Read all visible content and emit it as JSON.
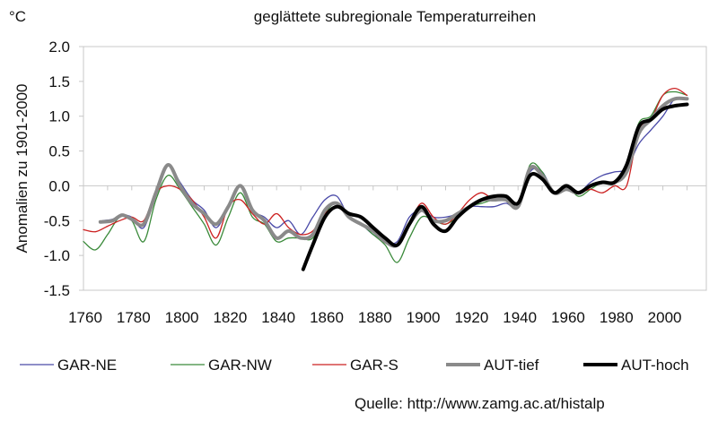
{
  "chart_data": {
    "type": "line",
    "title": "geglättete subregionale Temperaturreihen",
    "unit_label": "°C",
    "ylabel": "Anomalien zu 1901-2000",
    "xlabel": "",
    "ylim": [
      -1.5,
      2.0
    ],
    "xlim": [
      1760,
      2018
    ],
    "yticks": [
      "2.0",
      "1.5",
      "1.0",
      "0.5",
      "0.0",
      "-0.5",
      "-1.0",
      "-1.5"
    ],
    "ytick_values": [
      2.0,
      1.5,
      1.0,
      0.5,
      0.0,
      -0.5,
      -1.0,
      -1.5
    ],
    "xticks": [
      "1760",
      "1780",
      "1800",
      "1820",
      "1840",
      "1860",
      "1880",
      "1900",
      "1920",
      "1940",
      "1960",
      "1980",
      "2000"
    ],
    "xtick_values": [
      1760,
      1780,
      1800,
      1820,
      1840,
      1860,
      1880,
      1900,
      1920,
      1940,
      1960,
      1980,
      2000
    ],
    "grid": false,
    "legend_position": "bottom",
    "source": "Quelle: http://www.zamg.ac.at/histalp",
    "series": [
      {
        "name": "GAR-NE",
        "color": "#4a4aa8",
        "width": 1.3,
        "x": [
          1768,
          1772,
          1776,
          1780,
          1785,
          1790,
          1795,
          1800,
          1805,
          1810,
          1815,
          1820,
          1825,
          1830,
          1835,
          1840,
          1845,
          1850,
          1855,
          1860,
          1865,
          1870,
          1875,
          1880,
          1885,
          1890,
          1895,
          1900,
          1905,
          1910,
          1915,
          1920,
          1925,
          1930,
          1935,
          1940,
          1945,
          1950,
          1955,
          1960,
          1965,
          1970,
          1975,
          1980,
          1985,
          1990,
          1995,
          2000,
          2005,
          2010
        ],
        "y": [
          -0.5,
          -0.48,
          -0.42,
          -0.45,
          -0.6,
          -0.1,
          0.3,
          0.05,
          -0.2,
          -0.35,
          -0.6,
          -0.3,
          0.0,
          -0.35,
          -0.45,
          -0.6,
          -0.5,
          -0.7,
          -0.45,
          -0.2,
          -0.15,
          -0.45,
          -0.55,
          -0.7,
          -0.8,
          -0.8,
          -0.45,
          -0.35,
          -0.45,
          -0.45,
          -0.4,
          -0.3,
          -0.3,
          -0.3,
          -0.25,
          -0.3,
          0.2,
          0.2,
          -0.1,
          -0.05,
          -0.1,
          0.05,
          0.15,
          0.2,
          0.25,
          0.6,
          0.8,
          1.0,
          1.25,
          1.25
        ]
      },
      {
        "name": "GAR-NW",
        "color": "#3a8a3a",
        "width": 1.3,
        "x": [
          1760,
          1765,
          1770,
          1775,
          1780,
          1785,
          1790,
          1795,
          1800,
          1805,
          1810,
          1815,
          1820,
          1825,
          1830,
          1835,
          1840,
          1845,
          1850,
          1855,
          1860,
          1865,
          1870,
          1875,
          1880,
          1885,
          1890,
          1895,
          1900,
          1905,
          1910,
          1915,
          1920,
          1925,
          1930,
          1935,
          1940,
          1945,
          1950,
          1955,
          1960,
          1965,
          1970,
          1975,
          1980,
          1985,
          1990,
          1995,
          2000,
          2005,
          2010
        ],
        "y": [
          -0.8,
          -0.92,
          -0.7,
          -0.45,
          -0.5,
          -0.8,
          -0.2,
          0.15,
          -0.05,
          -0.3,
          -0.55,
          -0.85,
          -0.45,
          -0.1,
          -0.45,
          -0.55,
          -0.8,
          -0.75,
          -0.75,
          -0.75,
          -0.4,
          -0.25,
          -0.45,
          -0.55,
          -0.7,
          -0.85,
          -1.1,
          -0.75,
          -0.45,
          -0.5,
          -0.55,
          -0.45,
          -0.3,
          -0.25,
          -0.2,
          -0.2,
          -0.3,
          0.3,
          0.2,
          -0.1,
          0.0,
          -0.15,
          -0.05,
          0.05,
          0.05,
          0.3,
          0.9,
          1.0,
          1.3,
          1.35,
          1.3
        ]
      },
      {
        "name": "GAR-S",
        "color": "#cc2222",
        "width": 1.3,
        "x": [
          1760,
          1765,
          1770,
          1775,
          1780,
          1785,
          1790,
          1795,
          1800,
          1805,
          1810,
          1815,
          1820,
          1825,
          1830,
          1835,
          1840,
          1845,
          1850,
          1855,
          1860,
          1865,
          1870,
          1875,
          1880,
          1885,
          1890,
          1895,
          1900,
          1905,
          1910,
          1915,
          1920,
          1925,
          1930,
          1935,
          1940,
          1945,
          1950,
          1955,
          1960,
          1965,
          1970,
          1975,
          1980,
          1985,
          1990,
          1995,
          2000,
          2005,
          2010
        ],
        "y": [
          -0.63,
          -0.66,
          -0.58,
          -0.5,
          -0.45,
          -0.5,
          -0.1,
          0.0,
          -0.05,
          -0.2,
          -0.45,
          -0.75,
          -0.3,
          -0.2,
          -0.4,
          -0.55,
          -0.4,
          -0.6,
          -0.7,
          -0.65,
          -0.4,
          -0.3,
          -0.45,
          -0.55,
          -0.65,
          -0.8,
          -0.85,
          -0.55,
          -0.25,
          -0.45,
          -0.55,
          -0.4,
          -0.2,
          -0.1,
          -0.2,
          -0.2,
          -0.3,
          0.25,
          0.15,
          -0.1,
          -0.05,
          -0.1,
          -0.05,
          -0.1,
          0.0,
          0.0,
          0.8,
          0.95,
          1.3,
          1.4,
          1.3
        ]
      },
      {
        "name": "AUT-tief",
        "color": "#8a8a8a",
        "width": 4,
        "x": [
          1767,
          1772,
          1776,
          1780,
          1785,
          1790,
          1795,
          1800,
          1805,
          1810,
          1815,
          1820,
          1825,
          1830,
          1835,
          1840,
          1845,
          1850,
          1855,
          1860,
          1865,
          1870,
          1875,
          1880,
          1885,
          1890,
          1895,
          1900,
          1905,
          1910,
          1915,
          1920,
          1925,
          1930,
          1935,
          1940,
          1945,
          1950,
          1955,
          1960,
          1965,
          1970,
          1975,
          1980,
          1985,
          1990,
          1995,
          2000,
          2005,
          2010
        ],
        "y": [
          -0.52,
          -0.5,
          -0.42,
          -0.48,
          -0.55,
          -0.1,
          0.3,
          0.0,
          -0.25,
          -0.4,
          -0.55,
          -0.3,
          0.0,
          -0.35,
          -0.5,
          -0.75,
          -0.65,
          -0.75,
          -0.7,
          -0.35,
          -0.25,
          -0.45,
          -0.55,
          -0.65,
          -0.8,
          -0.85,
          -0.55,
          -0.35,
          -0.5,
          -0.5,
          -0.4,
          -0.3,
          -0.2,
          -0.2,
          -0.2,
          -0.3,
          0.25,
          0.15,
          -0.1,
          -0.05,
          -0.1,
          0.0,
          0.05,
          0.05,
          0.2,
          0.75,
          0.95,
          1.15,
          1.25,
          1.25
        ]
      },
      {
        "name": "AUT-hoch",
        "color": "#000000",
        "width": 4,
        "x": [
          1851,
          1855,
          1860,
          1865,
          1870,
          1875,
          1880,
          1885,
          1890,
          1895,
          1900,
          1905,
          1910,
          1915,
          1920,
          1925,
          1930,
          1935,
          1940,
          1945,
          1950,
          1955,
          1960,
          1965,
          1970,
          1975,
          1980,
          1985,
          1990,
          1995,
          2000,
          2005,
          2010
        ],
        "y": [
          -1.2,
          -0.85,
          -0.45,
          -0.3,
          -0.4,
          -0.45,
          -0.6,
          -0.75,
          -0.85,
          -0.55,
          -0.3,
          -0.55,
          -0.65,
          -0.45,
          -0.3,
          -0.2,
          -0.15,
          -0.15,
          -0.25,
          0.15,
          0.1,
          -0.1,
          0.0,
          -0.1,
          0.0,
          0.05,
          0.05,
          0.3,
          0.85,
          0.95,
          1.1,
          1.15,
          1.17
        ]
      }
    ]
  }
}
